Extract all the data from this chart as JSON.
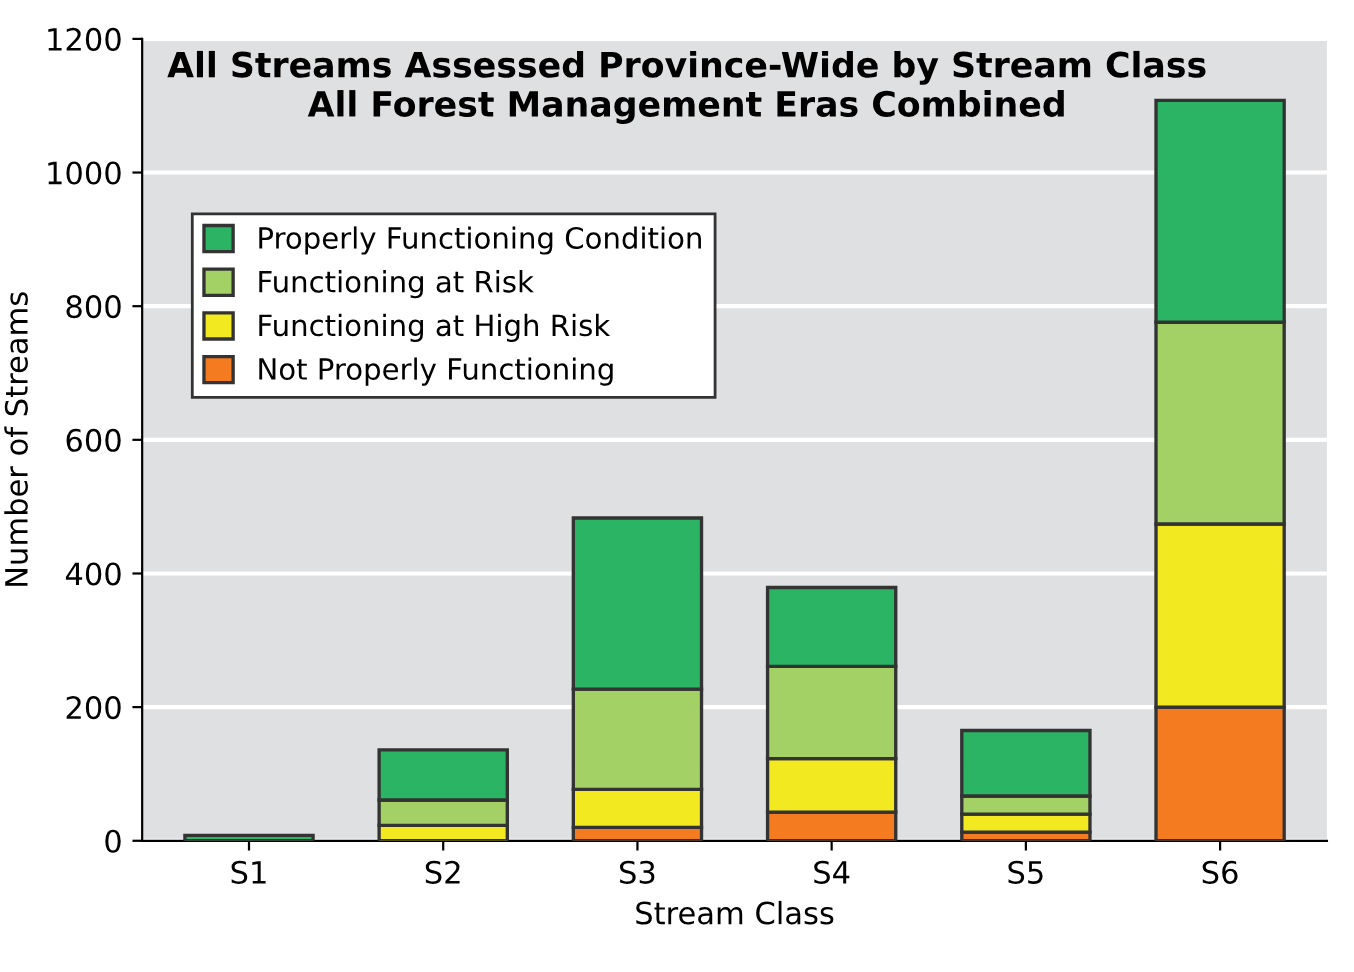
{
  "chart_data": {
    "type": "bar",
    "stacked": true,
    "title": "All Streams Assessed Province-Wide by Stream Class\nAll Forest Management Eras Combined",
    "xlabel": "Stream Class",
    "ylabel": "Number of Streams",
    "categories": [
      "S1",
      "S2",
      "S3",
      "S4",
      "S5",
      "S6"
    ],
    "series": [
      {
        "name": "Not Properly Functioning",
        "color": "#f47b20",
        "values": [
          null,
          null,
          20,
          43,
          13,
          200
        ]
      },
      {
        "name": "Functioning at High Risk",
        "color": "#f3e920",
        "values": [
          null,
          23,
          57,
          80,
          27,
          274
        ]
      },
      {
        "name": "Functioning at Risk",
        "color": "#a3d165",
        "values": [
          null,
          38,
          150,
          138,
          27,
          302
        ]
      },
      {
        "name": "Properly Functioning Condition",
        "color": "#2bb463",
        "values": [
          8,
          75,
          256,
          118,
          98,
          332
        ]
      }
    ],
    "ylim": [
      0,
      1200
    ],
    "yticks": [
      0,
      200,
      400,
      600,
      800,
      1000,
      1200
    ],
    "grid": "y",
    "legend": "top left"
  }
}
